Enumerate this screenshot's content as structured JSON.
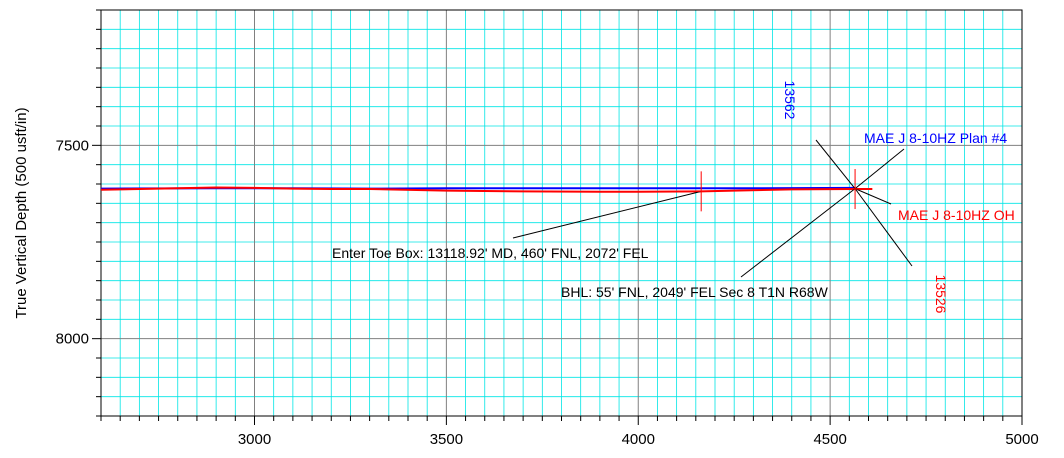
{
  "chart_data": {
    "type": "line",
    "title": "",
    "xlabel": "",
    "ylabel": "True Vertical Depth (500 usft/in)",
    "xlim": [
      2600,
      5000
    ],
    "ylim": [
      7150,
      8200
    ],
    "y_inverted": true,
    "x_ticks": [
      3000,
      3500,
      4000,
      4500,
      5000
    ],
    "y_ticks": [
      7500,
      8000
    ],
    "x_tick_labels": [
      "3000",
      "3500",
      "4000",
      "4500",
      "5000"
    ],
    "y_tick_labels": [
      "7500",
      "8000"
    ],
    "major_grid_interval": 500,
    "minor_grid_interval": 50,
    "grid": true,
    "colors": {
      "plan": "#0000ff",
      "actual": "#ff0000",
      "major_grid": "#808080",
      "minor_grid": "#00e5e5",
      "leader": "#000000"
    },
    "series": [
      {
        "name": "MAE J 8-10HZ Plan #4",
        "color": "#0000ff",
        "x": [
          2600,
          2900,
          3100,
          3300,
          3500,
          3800,
          4000,
          4300,
          4565
        ],
        "y": [
          7612,
          7611,
          7611,
          7612,
          7611,
          7611,
          7611,
          7611,
          7610
        ]
      },
      {
        "name": "MAE J 8-10HZ OH",
        "color": "#ff0000",
        "x": [
          2600,
          2750,
          2900,
          3000,
          3100,
          3200,
          3300,
          3500,
          3700,
          3900,
          4000,
          4164,
          4250,
          4400,
          4565,
          4610
        ],
        "y": [
          7615,
          7612,
          7609,
          7610,
          7612,
          7613,
          7613,
          7617,
          7619,
          7620,
          7620,
          7619,
          7617,
          7614,
          7613,
          7613
        ]
      }
    ],
    "markers": [
      {
        "x": 4164,
        "y": 7619,
        "color": "#ff0000"
      },
      {
        "x": 4565,
        "y": 7613,
        "color": "#ff0000"
      }
    ],
    "annotations": {
      "plan_label": "MAE J 8-10HZ Plan #4",
      "oh_label": "MAE J 8-10HZ OH",
      "plan_md": "13562",
      "oh_md": "13526",
      "toe_box": "Enter Toe Box: 13118.92' MD, 460' FNL, 2072' FEL",
      "bhl": "BHL: 55' FNL, 2049' FEL Sec 8 T1N R68W"
    }
  }
}
